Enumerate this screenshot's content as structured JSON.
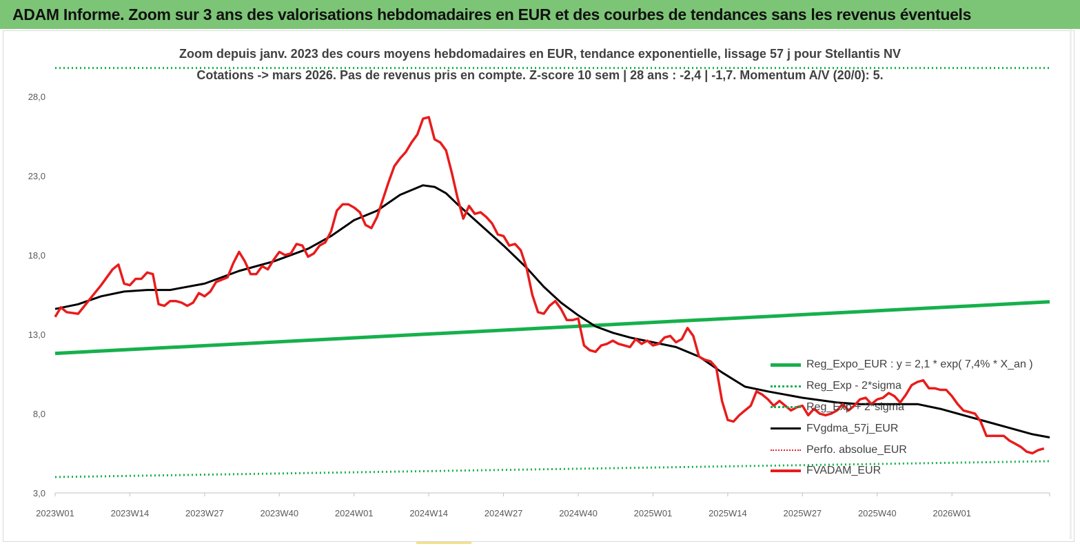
{
  "header": {
    "title": "ADAM Informe. Zoom sur 3 ans des valorisations hebdomadaires en EUR et des courbes de tendances sans les revenus éventuels"
  },
  "colors": {
    "header_bg": "#7cc576",
    "reg_expo": "#16b04c",
    "gdma": "#000000",
    "fvadam": "#e81c1c",
    "perfo": "#e0262b"
  },
  "chart_data": {
    "type": "line",
    "title": "Zoom depuis janv. 2023 des cours moyens hebdomadaires en EUR, tendance exponentielle, lissage 57 j pour Stellantis NV",
    "subtitle": "Cotations -> mars 2026. Pas de revenus pris en compte. Z-score 10 sem | 28 ans : -2,4 | -1,7. Momentum A/V (20/0): 5.",
    "ylim": [
      3.0,
      28.0
    ],
    "y_ticks": [
      "3,0",
      "8,0",
      "13,0",
      "18,0",
      "23,0",
      "28,0"
    ],
    "y_tick_values": [
      3,
      8,
      13,
      18,
      23,
      28
    ],
    "x_ticks": [
      "2023W01",
      "2023W14",
      "2023W27",
      "2023W40",
      "2024W01",
      "2024W14",
      "2024W27",
      "2024W40",
      "2025W01",
      "2025W14",
      "2025W27",
      "2025W40",
      "2026W01"
    ],
    "x_tick_weeks": [
      0,
      13,
      26,
      39,
      52,
      65,
      78,
      91,
      104,
      117,
      130,
      143,
      156
    ],
    "x_max_week": 173,
    "grid": false,
    "legend_position": "bottom-right",
    "series": [
      {
        "name": "Reg_Expo_EUR : y = 2,1 * exp( 7,4% *  X_an )",
        "style": "solid-green",
        "points": [
          [
            0,
            11.8
          ],
          [
            173,
            15.05
          ]
        ]
      },
      {
        "name": "Reg_Exp - 2*sigma",
        "style": "dot-green",
        "points": [
          [
            0,
            4.0
          ],
          [
            173,
            5.0
          ]
        ]
      },
      {
        "name": "Reg_Exp + 2*sigma",
        "style": "dot-green",
        "points": [
          [
            0,
            29.8
          ],
          [
            173,
            29.8
          ]
        ]
      },
      {
        "name": "FVgdma_57j_EUR",
        "style": "solid-black",
        "points": [
          [
            0,
            14.6
          ],
          [
            4,
            14.9
          ],
          [
            8,
            15.4
          ],
          [
            12,
            15.7
          ],
          [
            16,
            15.8
          ],
          [
            20,
            15.8
          ],
          [
            26,
            16.2
          ],
          [
            32,
            17.0
          ],
          [
            38,
            17.6
          ],
          [
            44,
            18.4
          ],
          [
            48,
            19.2
          ],
          [
            52,
            20.2
          ],
          [
            56,
            20.8
          ],
          [
            60,
            21.8
          ],
          [
            64,
            22.4
          ],
          [
            66,
            22.3
          ],
          [
            68,
            21.9
          ],
          [
            70,
            21.2
          ],
          [
            74,
            19.9
          ],
          [
            78,
            18.6
          ],
          [
            82,
            17.2
          ],
          [
            85,
            16.0
          ],
          [
            88,
            15.0
          ],
          [
            91,
            14.2
          ],
          [
            94,
            13.5
          ],
          [
            97,
            13.1
          ],
          [
            100,
            12.8
          ],
          [
            104,
            12.5
          ],
          [
            108,
            12.2
          ],
          [
            112,
            11.6
          ],
          [
            116,
            10.6
          ],
          [
            120,
            9.7
          ],
          [
            124,
            9.4
          ],
          [
            130,
            9.0
          ],
          [
            136,
            8.7
          ],
          [
            140,
            8.6
          ],
          [
            146,
            8.6
          ],
          [
            150,
            8.6
          ],
          [
            154,
            8.3
          ],
          [
            158,
            7.9
          ],
          [
            162,
            7.5
          ],
          [
            166,
            7.1
          ],
          [
            170,
            6.7
          ],
          [
            173,
            6.5
          ]
        ]
      },
      {
        "name": "Perfo. absolue_EUR",
        "style": "dot-red",
        "points": []
      },
      {
        "name": "FVADAM_EUR",
        "style": "solid-red",
        "points": [
          [
            0,
            14.1
          ],
          [
            1,
            14.7
          ],
          [
            2,
            14.4
          ],
          [
            4,
            14.3
          ],
          [
            6,
            15.2
          ],
          [
            8,
            16.1
          ],
          [
            10,
            17.1
          ],
          [
            11,
            17.4
          ],
          [
            12,
            16.2
          ],
          [
            13,
            16.1
          ],
          [
            14,
            16.5
          ],
          [
            15,
            16.5
          ],
          [
            16,
            16.9
          ],
          [
            17,
            16.8
          ],
          [
            18,
            14.9
          ],
          [
            19,
            14.8
          ],
          [
            20,
            15.1
          ],
          [
            21,
            15.1
          ],
          [
            22,
            15.0
          ],
          [
            23,
            14.8
          ],
          [
            24,
            15.0
          ],
          [
            25,
            15.6
          ],
          [
            26,
            15.4
          ],
          [
            27,
            15.7
          ],
          [
            28,
            16.3
          ],
          [
            30,
            16.6
          ],
          [
            31,
            17.5
          ],
          [
            32,
            18.2
          ],
          [
            33,
            17.6
          ],
          [
            34,
            16.8
          ],
          [
            35,
            16.8
          ],
          [
            36,
            17.3
          ],
          [
            37,
            17.1
          ],
          [
            38,
            17.7
          ],
          [
            39,
            18.2
          ],
          [
            40,
            18.0
          ],
          [
            41,
            18.1
          ],
          [
            42,
            18.7
          ],
          [
            43,
            18.6
          ],
          [
            44,
            17.9
          ],
          [
            45,
            18.1
          ],
          [
            46,
            18.6
          ],
          [
            47,
            18.8
          ],
          [
            48,
            19.5
          ],
          [
            49,
            20.8
          ],
          [
            50,
            21.2
          ],
          [
            51,
            21.2
          ],
          [
            52,
            21.0
          ],
          [
            53,
            20.7
          ],
          [
            54,
            19.9
          ],
          [
            55,
            19.7
          ],
          [
            56,
            20.4
          ],
          [
            57,
            21.5
          ],
          [
            58,
            22.6
          ],
          [
            59,
            23.6
          ],
          [
            60,
            24.1
          ],
          [
            61,
            24.5
          ],
          [
            62,
            25.1
          ],
          [
            63,
            25.6
          ],
          [
            64,
            26.6
          ],
          [
            65,
            26.7
          ],
          [
            66,
            25.3
          ],
          [
            67,
            25.1
          ],
          [
            68,
            24.6
          ],
          [
            69,
            23.2
          ],
          [
            70,
            21.6
          ],
          [
            71,
            20.3
          ],
          [
            72,
            21.1
          ],
          [
            73,
            20.6
          ],
          [
            74,
            20.7
          ],
          [
            75,
            20.4
          ],
          [
            76,
            20.0
          ],
          [
            77,
            19.3
          ],
          [
            78,
            19.2
          ],
          [
            79,
            18.6
          ],
          [
            80,
            18.7
          ],
          [
            81,
            18.3
          ],
          [
            82,
            17.2
          ],
          [
            83,
            15.5
          ],
          [
            84,
            14.4
          ],
          [
            85,
            14.3
          ],
          [
            86,
            14.8
          ],
          [
            87,
            15.1
          ],
          [
            88,
            14.6
          ],
          [
            89,
            13.9
          ],
          [
            90,
            13.9
          ],
          [
            91,
            14.0
          ],
          [
            92,
            12.3
          ],
          [
            93,
            12.0
          ],
          [
            94,
            11.9
          ],
          [
            95,
            12.3
          ],
          [
            96,
            12.4
          ],
          [
            97,
            12.6
          ],
          [
            98,
            12.4
          ],
          [
            99,
            12.3
          ],
          [
            100,
            12.2
          ],
          [
            101,
            12.7
          ],
          [
            102,
            12.4
          ],
          [
            103,
            12.6
          ],
          [
            104,
            12.3
          ],
          [
            105,
            12.4
          ],
          [
            106,
            12.8
          ],
          [
            107,
            12.9
          ],
          [
            108,
            12.5
          ],
          [
            109,
            12.7
          ],
          [
            110,
            13.4
          ],
          [
            111,
            12.9
          ],
          [
            112,
            11.6
          ],
          [
            113,
            11.4
          ],
          [
            114,
            11.3
          ],
          [
            115,
            10.9
          ],
          [
            116,
            8.8
          ],
          [
            117,
            7.6
          ],
          [
            118,
            7.5
          ],
          [
            119,
            7.9
          ],
          [
            120,
            8.2
          ],
          [
            121,
            8.5
          ],
          [
            122,
            9.4
          ],
          [
            123,
            9.2
          ],
          [
            124,
            8.9
          ],
          [
            125,
            8.5
          ],
          [
            126,
            8.8
          ],
          [
            127,
            8.5
          ],
          [
            128,
            8.2
          ],
          [
            129,
            8.4
          ],
          [
            130,
            8.5
          ],
          [
            131,
            7.9
          ],
          [
            132,
            8.3
          ],
          [
            133,
            8.0
          ],
          [
            134,
            7.9
          ],
          [
            135,
            8.0
          ],
          [
            136,
            8.2
          ],
          [
            137,
            8.6
          ],
          [
            138,
            8.2
          ],
          [
            139,
            8.5
          ],
          [
            140,
            8.9
          ],
          [
            141,
            9.0
          ],
          [
            142,
            8.6
          ],
          [
            143,
            8.9
          ],
          [
            144,
            9.0
          ],
          [
            145,
            9.3
          ],
          [
            146,
            9.1
          ],
          [
            147,
            8.7
          ],
          [
            148,
            9.2
          ],
          [
            149,
            9.8
          ],
          [
            150,
            10.0
          ],
          [
            151,
            10.1
          ],
          [
            152,
            9.6
          ],
          [
            153,
            9.6
          ],
          [
            154,
            9.5
          ],
          [
            155,
            9.5
          ],
          [
            156,
            9.1
          ],
          [
            157,
            8.6
          ],
          [
            158,
            8.2
          ],
          [
            159,
            8.1
          ],
          [
            160,
            8.0
          ],
          [
            161,
            7.5
          ],
          [
            162,
            6.6
          ],
          [
            163,
            6.6
          ],
          [
            164,
            6.6
          ],
          [
            165,
            6.6
          ],
          [
            166,
            6.3
          ],
          [
            167,
            6.1
          ],
          [
            168,
            5.9
          ],
          [
            169,
            5.6
          ],
          [
            170,
            5.5
          ],
          [
            171,
            5.7
          ],
          [
            172,
            5.8
          ]
        ]
      }
    ]
  }
}
